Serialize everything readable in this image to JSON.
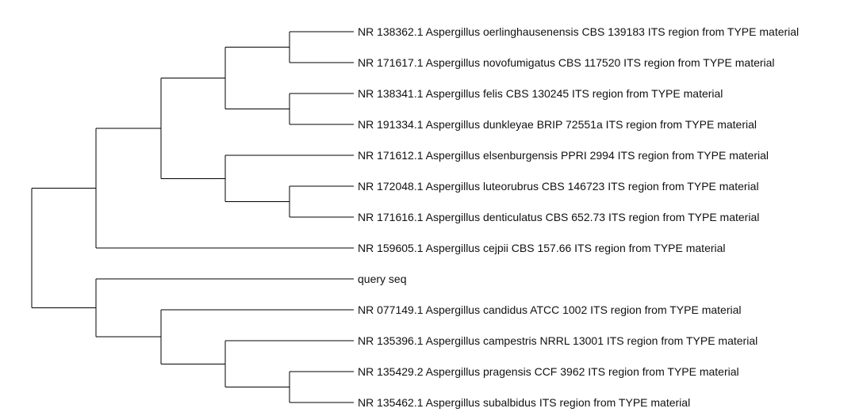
{
  "tree": {
    "leaves": [
      "NR 138362.1 Aspergillus oerlinghausenensis CBS 139183 ITS region from TYPE material",
      "NR 171617.1 Aspergillus novofumigatus CBS 117520 ITS region from TYPE material",
      "NR 138341.1 Aspergillus felis CBS 130245 ITS region from TYPE material",
      "NR 191334.1 Aspergillus dunkleyae BRIP 72551a ITS region from TYPE material",
      "NR 171612.1 Aspergillus elsenburgensis PPRI 2994 ITS region from TYPE material",
      "NR 172048.1 Aspergillus luteorubrus CBS 146723 ITS region from TYPE material",
      "NR 171616.1 Aspergillus denticulatus CBS 652.73 ITS region from TYPE material",
      "NR 159605.1 Aspergillus cejpii CBS 157.66 ITS region from TYPE material",
      "query seq",
      "NR 077149.1 Aspergillus candidus ATCC 1002 ITS region from TYPE material",
      "NR 135396.1 Aspergillus campestris NRRL 13001 ITS region from TYPE material",
      "NR 135429.2 Aspergillus pragensis CCF 3962 ITS region from TYPE material",
      "NR 135462.1 Aspergillus subalbidus ITS region from TYPE material"
    ],
    "newick": "((((((0,1),(2,3)),(4,(5,6))),7)),(8,(9,(10,(11,12)))));",
    "line_color": "#000000"
  }
}
